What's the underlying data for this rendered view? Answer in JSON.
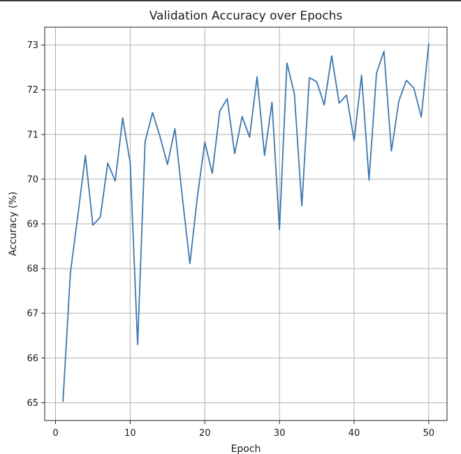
{
  "colors": {
    "series": "#3a78b0",
    "background": "#ffffff"
  },
  "chart_data": {
    "type": "line",
    "title": "Validation Accuracy over Epochs",
    "xlabel": "Epoch",
    "ylabel": "Accuracy (%)",
    "xlim": [
      -1.45,
      52.45
    ],
    "ylim": [
      64.6,
      73.4
    ],
    "xticks": [
      0,
      10,
      20,
      30,
      40,
      50
    ],
    "yticks": [
      65,
      66,
      67,
      68,
      69,
      70,
      71,
      72,
      73
    ],
    "grid": true,
    "series": [
      {
        "x": [
          1,
          2,
          3,
          4,
          5,
          6,
          7,
          8,
          9,
          10,
          11,
          12,
          13,
          14,
          15,
          16,
          17,
          18,
          19,
          20,
          21,
          22,
          23,
          24,
          25,
          26,
          27,
          28,
          29,
          30,
          31,
          32,
          33,
          34,
          35,
          36,
          37,
          38,
          39,
          40,
          41,
          42,
          43,
          44,
          45,
          46,
          47,
          48,
          49,
          50
        ],
        "y": [
          65.03,
          67.92,
          69.2,
          70.53,
          68.97,
          69.15,
          70.36,
          69.96,
          71.37,
          70.37,
          66.3,
          70.84,
          71.49,
          70.95,
          70.33,
          71.13,
          69.58,
          68.11,
          69.6,
          70.83,
          70.13,
          71.52,
          71.8,
          70.57,
          71.4,
          70.94,
          72.29,
          70.53,
          71.72,
          68.87,
          72.6,
          71.91,
          69.4,
          72.27,
          72.18,
          71.66,
          72.76,
          71.7,
          71.88,
          70.86,
          72.33,
          69.98,
          72.37,
          72.86,
          70.63,
          71.75,
          72.21,
          72.04,
          71.39,
          73.03
        ]
      }
    ]
  }
}
